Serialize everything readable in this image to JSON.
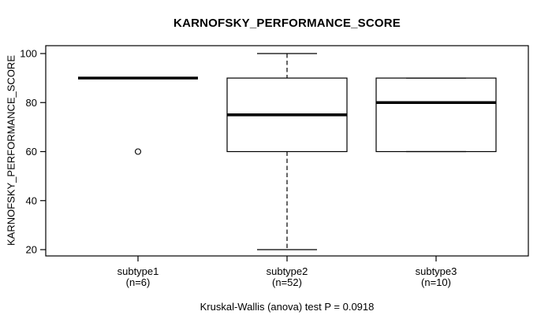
{
  "chart_data": {
    "type": "boxplot",
    "title": "KARNOFSKY_PERFORMANCE_SCORE",
    "ylabel": "KARNOFSKY_PERFORMANCE_SCORE",
    "xlabel": "",
    "ylim": [
      16.8,
      103.2
    ],
    "yticks": [
      20,
      40,
      60,
      80,
      100
    ],
    "grid": false,
    "legend": "none",
    "categories": [
      "subtype1",
      "subtype2",
      "subtype3"
    ],
    "category_sublabels": [
      "(n=6)",
      "(n=52)",
      "(n=10)"
    ],
    "series": [
      {
        "name": "subtype1",
        "n": 6,
        "min": 90,
        "q1": 90,
        "median": 90,
        "q3": 90,
        "max": 90,
        "outliers": [
          60
        ]
      },
      {
        "name": "subtype2",
        "n": 52,
        "min": 20,
        "q1": 60,
        "median": 75,
        "q3": 90,
        "max": 100,
        "outliers": []
      },
      {
        "name": "subtype3",
        "n": 10,
        "min": 60,
        "q1": 60,
        "median": 80,
        "q3": 90,
        "max": 90,
        "outliers": []
      }
    ],
    "annotation": "Kruskal-Wallis (anova) test P = 0.0918"
  },
  "colors": {
    "line": "#000000",
    "background": "#ffffff"
  }
}
